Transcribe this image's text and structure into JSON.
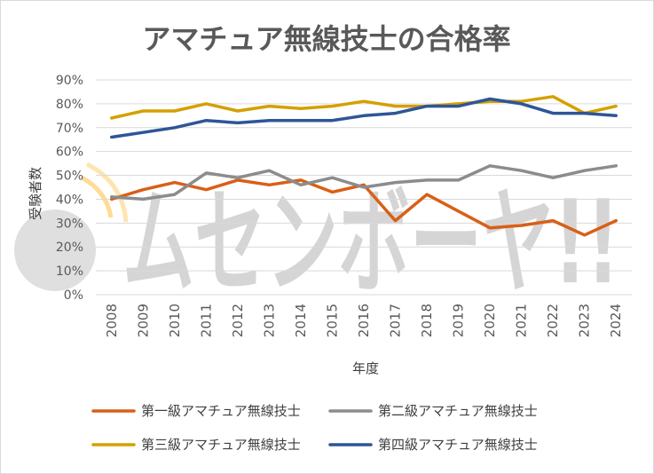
{
  "chart_data": {
    "type": "line",
    "title": "アマチュア無線技士の合格率",
    "xlabel": "年度",
    "ylabel": "受験者数",
    "categories": [
      "2008",
      "2009",
      "2010",
      "2011",
      "2012",
      "2013",
      "2014",
      "2015",
      "2016",
      "2017",
      "2018",
      "2019",
      "2020",
      "2021",
      "2022",
      "2023",
      "2024"
    ],
    "ylim": [
      0,
      90
    ],
    "yticks": [
      "0%",
      "10%",
      "20%",
      "30%",
      "40%",
      "50%",
      "60%",
      "70%",
      "80%",
      "90%"
    ],
    "grid": true,
    "legend_position": "bottom",
    "watermark": "ムセンボーヤ!!",
    "series": [
      {
        "name": "第一級アマチュア無線技士",
        "color": "#d95f17",
        "values": [
          40,
          44,
          47,
          44,
          48,
          46,
          48,
          43,
          46,
          31,
          42,
          35,
          28,
          29,
          31,
          25,
          31
        ]
      },
      {
        "name": "第二級アマチュア無線技士",
        "color": "#8c8c8c",
        "values": [
          41,
          40,
          42,
          51,
          49,
          52,
          46,
          49,
          45,
          47,
          48,
          48,
          54,
          52,
          49,
          52,
          54
        ]
      },
      {
        "name": "第三級アマチュア無線技士",
        "color": "#d4a000",
        "values": [
          74,
          77,
          77,
          80,
          77,
          79,
          78,
          79,
          81,
          79,
          79,
          80,
          81,
          81,
          83,
          76,
          79
        ]
      },
      {
        "name": "第四級アマチュア無線技士",
        "color": "#2e5597",
        "values": [
          66,
          68,
          70,
          73,
          72,
          73,
          73,
          73,
          75,
          76,
          79,
          79,
          82,
          80,
          76,
          76,
          75
        ]
      }
    ]
  }
}
